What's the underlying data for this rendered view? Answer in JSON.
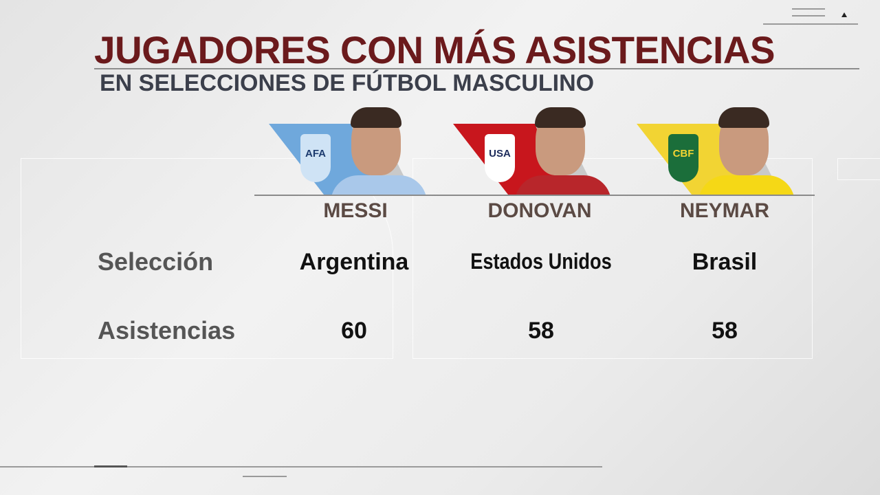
{
  "header": {
    "title": "JUGADORES CON MÁS ASISTENCIAS",
    "subtitle": "EN SELECCIONES DE FÚTBOL MASCULINO"
  },
  "rows": {
    "selection_label": "Selección",
    "assists_label": "Asistencias"
  },
  "players": [
    {
      "name": "MESSI",
      "country": "Argentina",
      "assists": "60",
      "flag_color": "#6fa8dc",
      "crest": "AFA",
      "kit_color": "#a9c8ea"
    },
    {
      "name": "DONOVAN",
      "country": "Estados Unidos",
      "assists": "58",
      "flag_color": "#c8161d",
      "crest": "USA",
      "kit_color": "#b8262b"
    },
    {
      "name": "NEYMAR",
      "country": "Brasil",
      "assists": "58",
      "flag_color": "#f2d433",
      "crest": "CBF",
      "kit_color": "#f5d816"
    }
  ],
  "colors": {
    "title": "#6b1a1c",
    "subtitle": "#3b3f4b",
    "names": "#5b4a44"
  }
}
